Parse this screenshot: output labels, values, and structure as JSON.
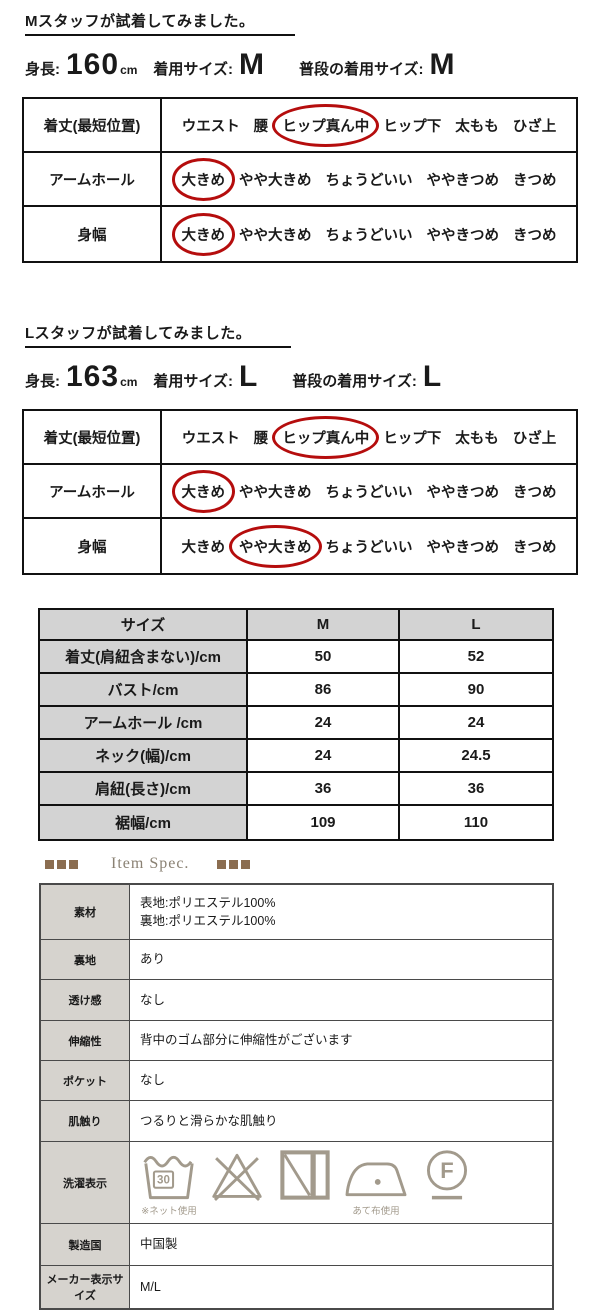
{
  "page": {
    "background": "#ffffff"
  },
  "sections": [
    {
      "id": "M",
      "title": "Mスタッフが試着してみました。",
      "stats": [
        {
          "label": "身長:",
          "big": "160",
          "unit": "cm"
        },
        {
          "label": "着用サイズ:",
          "big": "M"
        },
        {
          "label": "普段の着用サイズ:",
          "big": "M"
        }
      ],
      "fit_rows": [
        {
          "label": "着丈(最短位置)",
          "options": [
            "ウエスト",
            "腰",
            "ヒップ真ん中",
            "ヒップ下",
            "太もも",
            "ひざ上"
          ],
          "selected": 2
        },
        {
          "label": "アームホール",
          "options": [
            "大きめ",
            "やや大きめ",
            "ちょうどいい",
            "ややきつめ",
            "きつめ"
          ],
          "selected": 0
        },
        {
          "label": "身幅",
          "options": [
            "大きめ",
            "やや大きめ",
            "ちょうどいい",
            "ややきつめ",
            "きつめ"
          ],
          "selected": 0
        }
      ]
    },
    {
      "id": "L",
      "title": "Lスタッフが試着してみました。",
      "stats": [
        {
          "label": "身長:",
          "big": "163",
          "unit": "cm"
        },
        {
          "label": "着用サイズ:",
          "big": "L"
        },
        {
          "label": "普段の着用サイズ:",
          "big": "L"
        }
      ],
      "fit_rows": [
        {
          "label": "着丈(最短位置)",
          "options": [
            "ウエスト",
            "腰",
            "ヒップ真ん中",
            "ヒップ下",
            "太もも",
            "ひざ上"
          ],
          "selected": 2
        },
        {
          "label": "アームホール",
          "options": [
            "大きめ",
            "やや大きめ",
            "ちょうどいい",
            "ややきつめ",
            "きつめ"
          ],
          "selected": 0
        },
        {
          "label": "身幅",
          "options": [
            "大きめ",
            "やや大きめ",
            "ちょうどいい",
            "ややきつめ",
            "きつめ"
          ],
          "selected": 1
        }
      ]
    }
  ],
  "size_table": {
    "headers": [
      "サイズ",
      "M",
      "L"
    ],
    "rows": [
      {
        "label": "着丈(肩紐含まない)/cm",
        "values": [
          "50",
          "52"
        ]
      },
      {
        "label": "バスト/cm",
        "values": [
          "86",
          "90"
        ]
      },
      {
        "label": "アームホール /cm",
        "values": [
          "24",
          "24"
        ]
      },
      {
        "label": "ネック(幅)/cm",
        "values": [
          "24",
          "24.5"
        ]
      },
      {
        "label": "肩紐(長さ)/cm",
        "values": [
          "36",
          "36"
        ]
      },
      {
        "label": "裾幅/cm",
        "values": [
          "109",
          "110"
        ]
      }
    ]
  },
  "item_spec": {
    "heading": "Item Spec.",
    "rows": [
      {
        "label": "素材",
        "value": "表地:ポリエステル100%\n裏地:ポリエステル100%"
      },
      {
        "label": "裏地",
        "value": "あり"
      },
      {
        "label": "透け感",
        "value": "なし"
      },
      {
        "label": "伸縮性",
        "value": "背中のゴム部分に伸縮性がございます"
      },
      {
        "label": "ポケット",
        "value": "なし"
      },
      {
        "label": "肌触り",
        "value": "つるりと滑らかな肌触り"
      },
      {
        "label": "洗濯表示",
        "laundry_icons": [
          {
            "type": "wash",
            "value": "30",
            "caption": "※ネット使用",
            "name": "wash-30-tub-icon"
          },
          {
            "type": "no-bleach",
            "name": "do-not-bleach-icon"
          },
          {
            "type": "dry-shade",
            "name": "line-dry-in-shade-icon"
          },
          {
            "type": "iron",
            "caption": "あて布使用",
            "name": "iron-with-cloth-icon"
          },
          {
            "type": "dry-clean",
            "value": "F",
            "name": "dry-clean-f-icon"
          }
        ]
      },
      {
        "label": "製造国",
        "value": "中国製"
      },
      {
        "label": "メーカー表示サイズ",
        "value": "M/L"
      }
    ]
  },
  "colors": {
    "circle_red": "#b50d0d",
    "laundry_icon": "#a29a8c",
    "table_header_gray": "#d3d3d3",
    "spec_label_gray": "#d6d3ce",
    "deco_square_brown": "#8b6d50",
    "heading_text": "#8a8173"
  }
}
